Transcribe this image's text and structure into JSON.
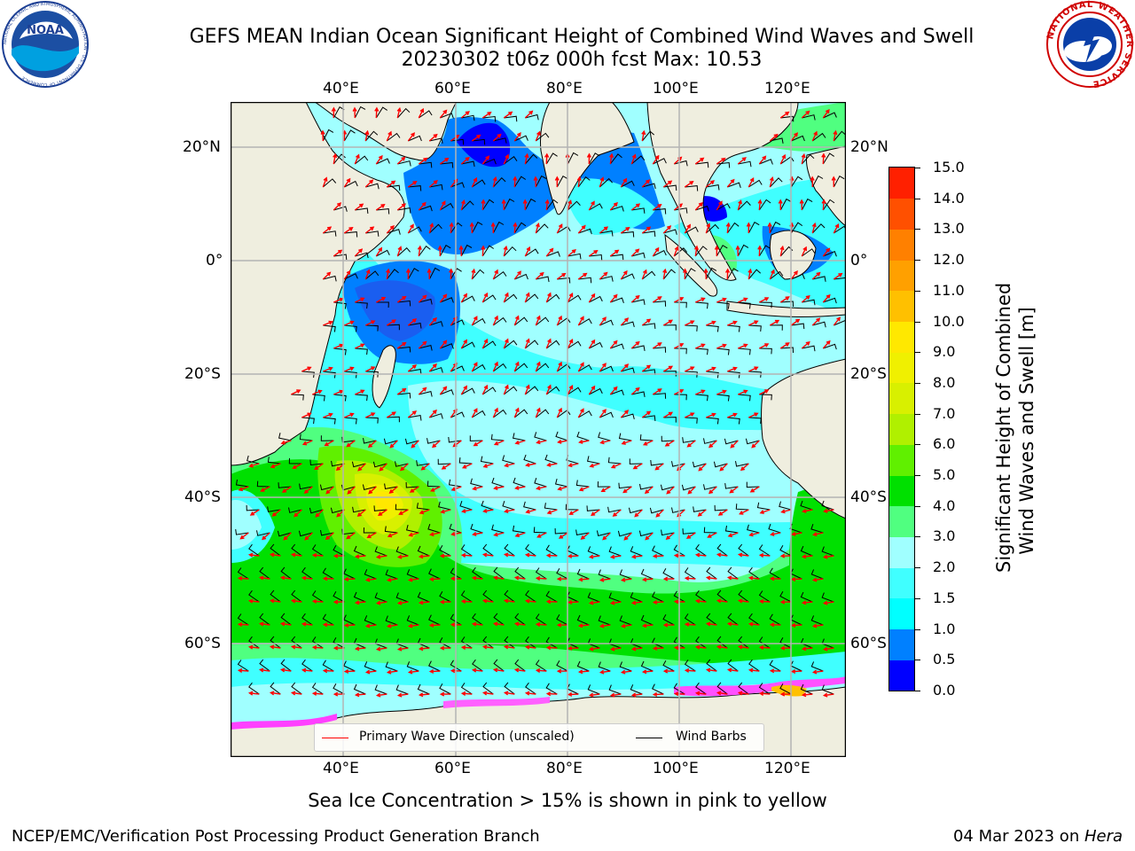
{
  "header": {
    "title_line1": "GEFS MEAN Indian Ocean Significant Height of Combined Wind Waves and Swell",
    "title_line2": "20230302 t06z 000h fcst   Max: 10.53"
  },
  "logos": {
    "left": {
      "text": "NOAA",
      "ring_text": "NATIONAL OCEANIC AND ATMOSPHERIC ADMINISTRATION · U.S. DEPARTMENT OF COMMERCE"
    },
    "right": {
      "ring_text": "NATIONAL WEATHER SERVICE"
    }
  },
  "map": {
    "lon_ticks": [
      "40°E",
      "60°E",
      "80°E",
      "100°E",
      "120°E"
    ],
    "lat_ticks_left": [
      "20°N",
      "0°",
      "20°S",
      "40°S",
      "60°S"
    ],
    "lat_ticks_right": [
      "20°N",
      "0°",
      "20°S",
      "40°S",
      "60°S"
    ],
    "colors": {
      "land": "#efeedf",
      "grid": "#b4b4b4",
      "coast": "#000000"
    }
  },
  "colorbar": {
    "ticks": [
      "15.0",
      "14.0",
      "13.0",
      "12.0",
      "11.0",
      "10.0",
      "9.0",
      "8.0",
      "7.0",
      "6.0",
      "5.0",
      "4.0",
      "3.0",
      "2.0",
      "1.5",
      "1.0",
      "0.5",
      "0.0"
    ],
    "colors": [
      "#0000ff",
      "#0080ff",
      "#00ffff",
      "#40ffff",
      "#a0ffff",
      "#50ff80",
      "#00e000",
      "#60f000",
      "#b0f000",
      "#d8f000",
      "#f0f000",
      "#ffe800",
      "#ffc000",
      "#ffa000",
      "#ff8000",
      "#ff5000",
      "#ff2000"
    ],
    "label_line1": "Significant Height of Combined",
    "label_line2": "Wind Waves and Swell [m]"
  },
  "legend": {
    "wave_label": "Primary Wave Direction (unscaled)",
    "wind_label": "Wind Barbs",
    "wave_color": "#ff0000",
    "wind_color": "#000000"
  },
  "note": "Sea Ice Concentration > 15% is shown in pink to yellow",
  "footer": {
    "left": "NCEP/EMC/Verification Post Processing Product Generation Branch",
    "right_prefix": "04 Mar 2023 on ",
    "right_host": "Hera"
  }
}
